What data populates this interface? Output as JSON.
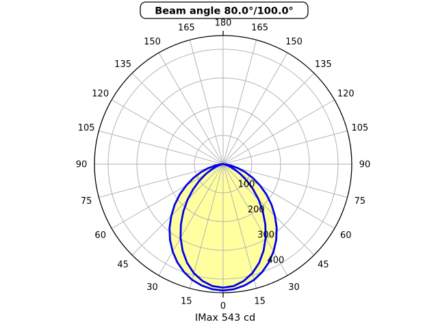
{
  "chart_data": {
    "type": "polar",
    "title": "Beam angle 80.0°/100.0°",
    "footer": "IMax 543 cd",
    "imax_cd": 543,
    "beam_angle_deg": [
      80.0,
      100.0
    ],
    "angle_tick_labels": [
      0,
      15,
      30,
      45,
      60,
      75,
      90,
      105,
      120,
      135,
      150,
      165,
      180
    ],
    "radial_tick_labels": [
      100,
      200,
      300,
      400
    ],
    "legend_position": "none",
    "grid": true,
    "colors": {
      "curve": "#0000ee",
      "fill": "#ffffa0",
      "grid": "#b3b3b3",
      "axis": "#000000",
      "background": "#ffffff"
    },
    "series": [
      {
        "name": "100.0°",
        "style": "outer",
        "points": [
          [
            0,
            440
          ],
          [
            5,
            437
          ],
          [
            10,
            429
          ],
          [
            15,
            417
          ],
          [
            20,
            399
          ],
          [
            25,
            377
          ],
          [
            30,
            351
          ],
          [
            35,
            322
          ],
          [
            40,
            290
          ],
          [
            45,
            255
          ],
          [
            50,
            220
          ],
          [
            55,
            184
          ],
          [
            60,
            148
          ],
          [
            65,
            114
          ],
          [
            70,
            82
          ],
          [
            75,
            53
          ],
          [
            80,
            28
          ],
          [
            85,
            10
          ],
          [
            90,
            0
          ]
        ]
      },
      {
        "name": "80.0°",
        "style": "inner",
        "points": [
          [
            0,
            430
          ],
          [
            5,
            426
          ],
          [
            10,
            413
          ],
          [
            15,
            393
          ],
          [
            20,
            366
          ],
          [
            25,
            333
          ],
          [
            30,
            296
          ],
          [
            35,
            256
          ],
          [
            40,
            215
          ],
          [
            45,
            175
          ],
          [
            50,
            136
          ],
          [
            55,
            101
          ],
          [
            60,
            71
          ],
          [
            65,
            46
          ],
          [
            70,
            26
          ],
          [
            75,
            13
          ],
          [
            80,
            5
          ],
          [
            85,
            1
          ],
          [
            90,
            0
          ]
        ]
      }
    ]
  }
}
